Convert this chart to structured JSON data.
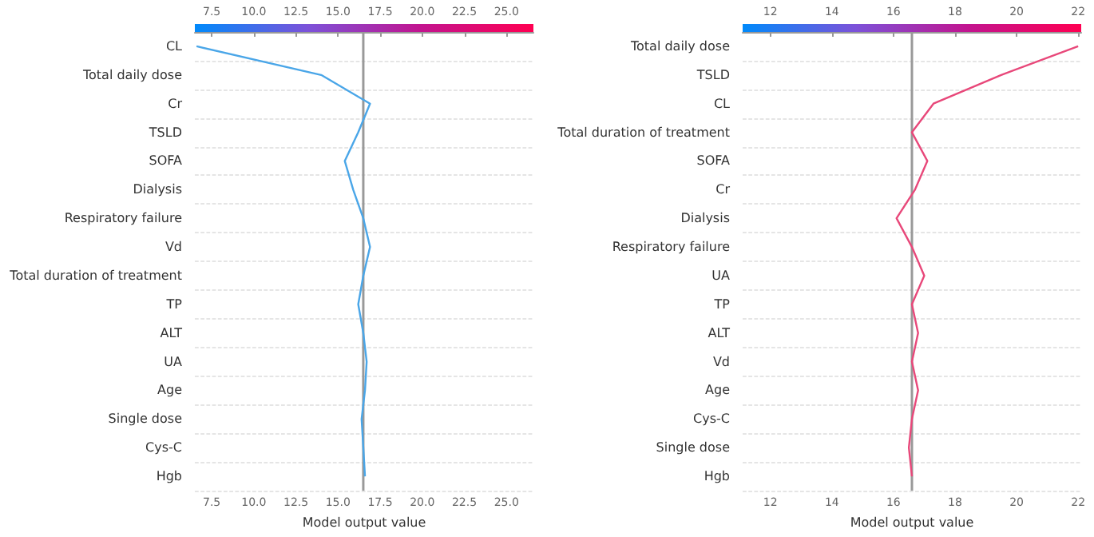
{
  "chart_data": [
    {
      "type": "line",
      "orientation": "horizontal",
      "xlabel": "Model output value",
      "categories": [
        "CL",
        "Total daily dose",
        "Cr",
        "TSLD",
        "SOFA",
        "Dialysis",
        "Respiratory failure",
        "Vd",
        "Total duration of treatment",
        "TP",
        "ALT",
        "UA",
        "Age",
        "Single dose",
        "Cys-C",
        "Hgb"
      ],
      "series": [
        {
          "color": "#4aa6e8",
          "values": [
            6.6,
            14.0,
            16.9,
            16.2,
            15.4,
            15.9,
            16.5,
            16.9,
            16.5,
            16.2,
            16.5,
            16.7,
            16.6,
            16.4,
            16.5,
            16.6
          ]
        }
      ],
      "ref_lines": [
        {
          "axis": "x",
          "value": 16.5,
          "color": "#999999"
        }
      ],
      "xlim": [
        6.5,
        26.6
      ],
      "xticks": [
        7.5,
        {
          "value": 10,
          "label": "10.0"
        },
        12.5,
        {
          "value": 15,
          "label": "15.0"
        },
        17.5,
        {
          "value": 20,
          "label": "20.0"
        },
        22.5,
        {
          "value": 25,
          "label": "25.0"
        }
      ],
      "x2lim": [
        6.5,
        26.6
      ],
      "x2ticks": [
        7.5,
        {
          "value": 10,
          "label": "10.0"
        },
        12.5,
        {
          "value": 15,
          "label": "15.0"
        },
        17.5,
        {
          "value": 20,
          "label": "20.0"
        },
        22.5,
        {
          "value": 25,
          "label": "25.0"
        }
      ],
      "grid": "y"
    },
    {
      "type": "line",
      "orientation": "horizontal",
      "xlabel": "Model output value",
      "categories": [
        "Total daily dose",
        "TSLD",
        "CL",
        "Total duration of treatment",
        "SOFA",
        "Cr",
        "Dialysis",
        "Respiratory failure",
        "UA",
        "TP",
        "ALT",
        "Vd",
        "Age",
        "Cys-C",
        "Single dose",
        "Hgb"
      ],
      "series": [
        {
          "color": "#e8487a",
          "values": [
            22.0,
            19.5,
            17.3,
            16.6,
            17.1,
            16.7,
            16.1,
            16.6,
            17.0,
            16.6,
            16.8,
            16.6,
            16.8,
            16.6,
            16.5,
            16.6
          ]
        }
      ],
      "ref_lines": [
        {
          "axis": "x",
          "value": 16.6,
          "color": "#999999"
        }
      ],
      "xlim": [
        11.1,
        22.1
      ],
      "xticks": [
        12,
        14,
        16,
        18,
        20,
        22
      ],
      "x2lim": [
        11.1,
        22.1
      ],
      "x2ticks": [
        12,
        14,
        16,
        18,
        20,
        22
      ],
      "grid": "y"
    }
  ]
}
